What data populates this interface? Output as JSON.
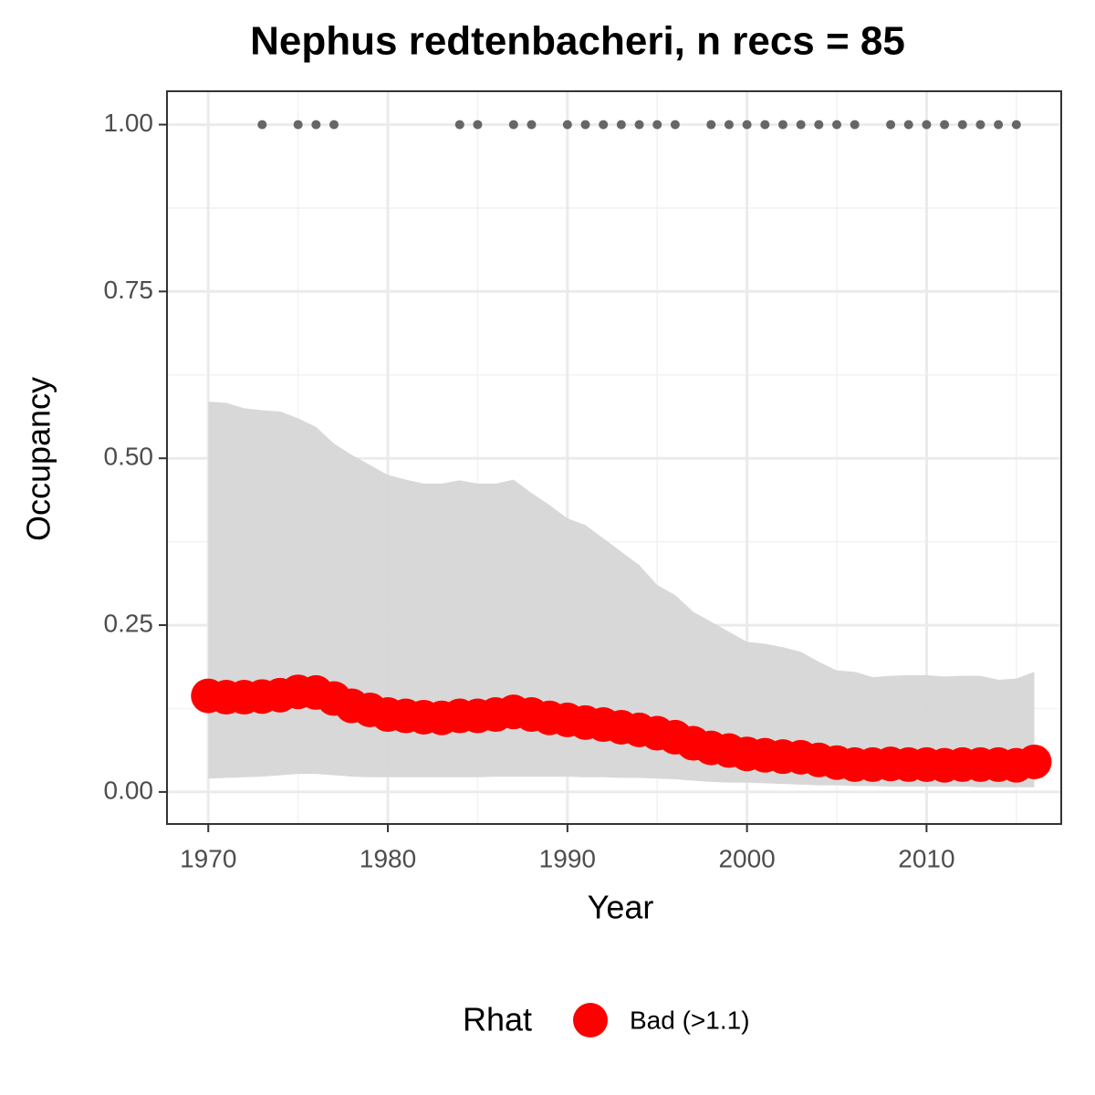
{
  "chart_data": {
    "type": "occupancy",
    "title": "Nephus redtenbacheri, n recs = 85",
    "x_label": "Year",
    "y_label": "Occupancy",
    "legend_title": "Rhat",
    "x": [
      1970,
      1971,
      1972,
      1973,
      1974,
      1975,
      1976,
      1977,
      1978,
      1979,
      1980,
      1981,
      1982,
      1983,
      1984,
      1985,
      1986,
      1987,
      1988,
      1989,
      1990,
      1991,
      1992,
      1993,
      1994,
      1995,
      1996,
      1997,
      1998,
      1999,
      2000,
      2001,
      2002,
      2003,
      2004,
      2005,
      2006,
      2007,
      2008,
      2009,
      2010,
      2011,
      2012,
      2013,
      2014,
      2015,
      2016
    ],
    "series": [
      {
        "name": "Bad (>1.1)",
        "color": "#ff0000",
        "values": [
          0.144,
          0.142,
          0.142,
          0.143,
          0.145,
          0.15,
          0.149,
          0.14,
          0.129,
          0.123,
          0.116,
          0.114,
          0.112,
          0.111,
          0.114,
          0.114,
          0.116,
          0.12,
          0.116,
          0.111,
          0.108,
          0.104,
          0.101,
          0.097,
          0.093,
          0.088,
          0.082,
          0.073,
          0.066,
          0.062,
          0.057,
          0.055,
          0.053,
          0.052,
          0.048,
          0.044,
          0.041,
          0.041,
          0.042,
          0.041,
          0.041,
          0.04,
          0.041,
          0.041,
          0.041,
          0.04,
          0.045
        ]
      }
    ],
    "band": {
      "color": "#d6d6d6",
      "upper": [
        0.585,
        0.583,
        0.575,
        0.572,
        0.57,
        0.56,
        0.547,
        0.522,
        0.505,
        0.49,
        0.475,
        0.468,
        0.462,
        0.462,
        0.467,
        0.462,
        0.462,
        0.468,
        0.448,
        0.43,
        0.41,
        0.4,
        0.38,
        0.36,
        0.34,
        0.31,
        0.295,
        0.27,
        0.255,
        0.24,
        0.225,
        0.222,
        0.217,
        0.21,
        0.195,
        0.182,
        0.18,
        0.172,
        0.174,
        0.175,
        0.175,
        0.173,
        0.174,
        0.174,
        0.168,
        0.17,
        0.18
      ],
      "lower": [
        0.02,
        0.021,
        0.022,
        0.023,
        0.025,
        0.027,
        0.027,
        0.025,
        0.023,
        0.022,
        0.022,
        0.022,
        0.022,
        0.022,
        0.022,
        0.022,
        0.023,
        0.023,
        0.023,
        0.023,
        0.023,
        0.022,
        0.022,
        0.021,
        0.021,
        0.02,
        0.019,
        0.017,
        0.015,
        0.014,
        0.014,
        0.013,
        0.012,
        0.011,
        0.01,
        0.01,
        0.009,
        0.009,
        0.008,
        0.008,
        0.008,
        0.008,
        0.008,
        0.007,
        0.007,
        0.007,
        0.007
      ]
    },
    "records": {
      "color": "#666666",
      "x": [
        1973,
        1975,
        1976,
        1977,
        1984,
        1985,
        1987,
        1988,
        1990,
        1991,
        1992,
        1993,
        1994,
        1995,
        1996,
        1998,
        1999,
        2000,
        2001,
        2002,
        2003,
        2004,
        2005,
        2006,
        2008,
        2009,
        2010,
        2011,
        2012,
        2013,
        2014,
        2015
      ],
      "y": [
        1,
        1,
        1,
        1,
        1,
        1,
        1,
        1,
        1,
        1,
        1,
        1,
        1,
        1,
        1,
        1,
        1,
        1,
        1,
        1,
        1,
        1,
        1,
        1,
        1,
        1,
        1,
        1,
        1,
        1,
        1,
        1
      ]
    },
    "xlim": [
      1967.7,
      2017.5
    ],
    "ylim": [
      -0.048,
      1.05
    ],
    "xticks": [
      1970,
      1980,
      1990,
      2000,
      2010
    ],
    "yticks": [
      {
        "value": 0,
        "label": "0.00"
      },
      {
        "value": 0.25,
        "label": "0.25"
      },
      {
        "value": 0.5,
        "label": "0.50"
      },
      {
        "value": 0.75,
        "label": "0.75"
      },
      {
        "value": 1,
        "label": "1.00"
      }
    ],
    "minor_xticks": [
      1975,
      1985,
      1995,
      2005,
      2015
    ],
    "minor_yticks": [
      0.125,
      0.375,
      0.625,
      0.875
    ],
    "grid": true
  }
}
